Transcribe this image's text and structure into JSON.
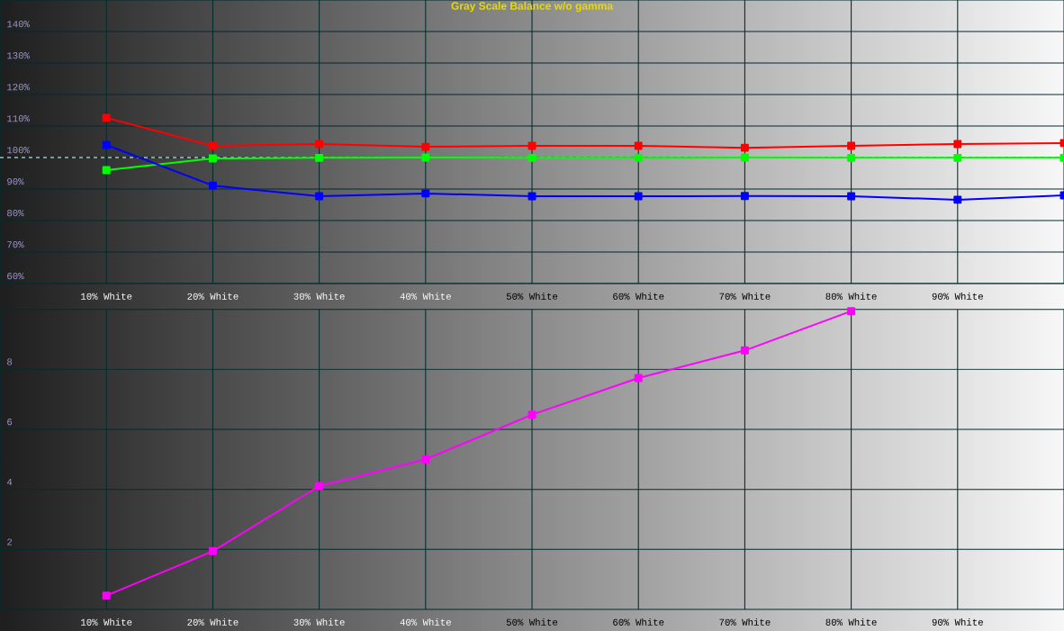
{
  "chart_data": [
    {
      "type": "line",
      "title": "Gray Scale Balance w/o gamma",
      "xlim": [
        0,
        100
      ],
      "ylim": [
        60,
        150
      ],
      "xticks": [
        {
          "value": 10,
          "label": "10% White"
        },
        {
          "value": 20,
          "label": "20% White"
        },
        {
          "value": 30,
          "label": "30% White"
        },
        {
          "value": 40,
          "label": "40% White"
        },
        {
          "value": 50,
          "label": "50% White"
        },
        {
          "value": 60,
          "label": "60% White"
        },
        {
          "value": 70,
          "label": "70% White"
        },
        {
          "value": 80,
          "label": "80% White"
        },
        {
          "value": 90,
          "label": "90% White"
        }
      ],
      "yticks": [
        {
          "value": 60,
          "label": "60%"
        },
        {
          "value": 70,
          "label": "70%"
        },
        {
          "value": 80,
          "label": "80%"
        },
        {
          "value": 90,
          "label": "90%"
        },
        {
          "value": 100,
          "label": "100%"
        },
        {
          "value": 110,
          "label": "110%"
        },
        {
          "value": 120,
          "label": "120%"
        },
        {
          "value": 130,
          "label": "130%"
        },
        {
          "value": 140,
          "label": "140%"
        }
      ],
      "grid": true,
      "marker": "square",
      "line_style": "solid",
      "ref_lines": [
        {
          "axis": "y",
          "value": 100,
          "color": "#ffffff",
          "line_style": "dashed"
        }
      ],
      "series": [
        {
          "color": "#ff0000",
          "x": [
            10,
            20,
            30,
            40,
            50,
            60,
            70,
            80,
            90,
            100
          ],
          "values": [
            112.6,
            103.7,
            104.3,
            103.4,
            103.7,
            103.7,
            103.1,
            103.7,
            104.3,
            104.6
          ]
        },
        {
          "color": "#00ff00",
          "x": [
            10,
            20,
            30,
            40,
            50,
            60,
            70,
            80,
            90,
            100
          ],
          "values": [
            96,
            99.7,
            99.9,
            100,
            99.9,
            99.9,
            100,
            99.9,
            99.9,
            99.9
          ]
        },
        {
          "color": "#0000ff",
          "x": [
            10,
            20,
            30,
            40,
            50,
            60,
            70,
            80,
            90,
            100
          ],
          "values": [
            104,
            91.1,
            87.7,
            88.6,
            87.7,
            87.7,
            87.8,
            87.7,
            86.6,
            88
          ]
        }
      ]
    },
    {
      "type": "line",
      "xlim": [
        0,
        100
      ],
      "ylim": [
        0,
        10
      ],
      "xticks": [
        {
          "value": 10,
          "label": "10% White"
        },
        {
          "value": 20,
          "label": "20% White"
        },
        {
          "value": 30,
          "label": "30% White"
        },
        {
          "value": 40,
          "label": "40% White"
        },
        {
          "value": 50,
          "label": "50% White"
        },
        {
          "value": 60,
          "label": "60% White"
        },
        {
          "value": 70,
          "label": "70% White"
        },
        {
          "value": 80,
          "label": "80% White"
        },
        {
          "value": 90,
          "label": "90% White"
        }
      ],
      "yticks": [
        2,
        4,
        6,
        8
      ],
      "grid": true,
      "marker": "square",
      "line_style": "solid",
      "series": [
        {
          "color": "#ff00ff",
          "x": [
            10,
            20,
            30,
            40,
            50,
            60,
            70,
            80
          ],
          "values": [
            0.46,
            1.94,
            4.11,
            5.0,
            6.49,
            7.71,
            8.63,
            9.94
          ]
        }
      ]
    }
  ]
}
